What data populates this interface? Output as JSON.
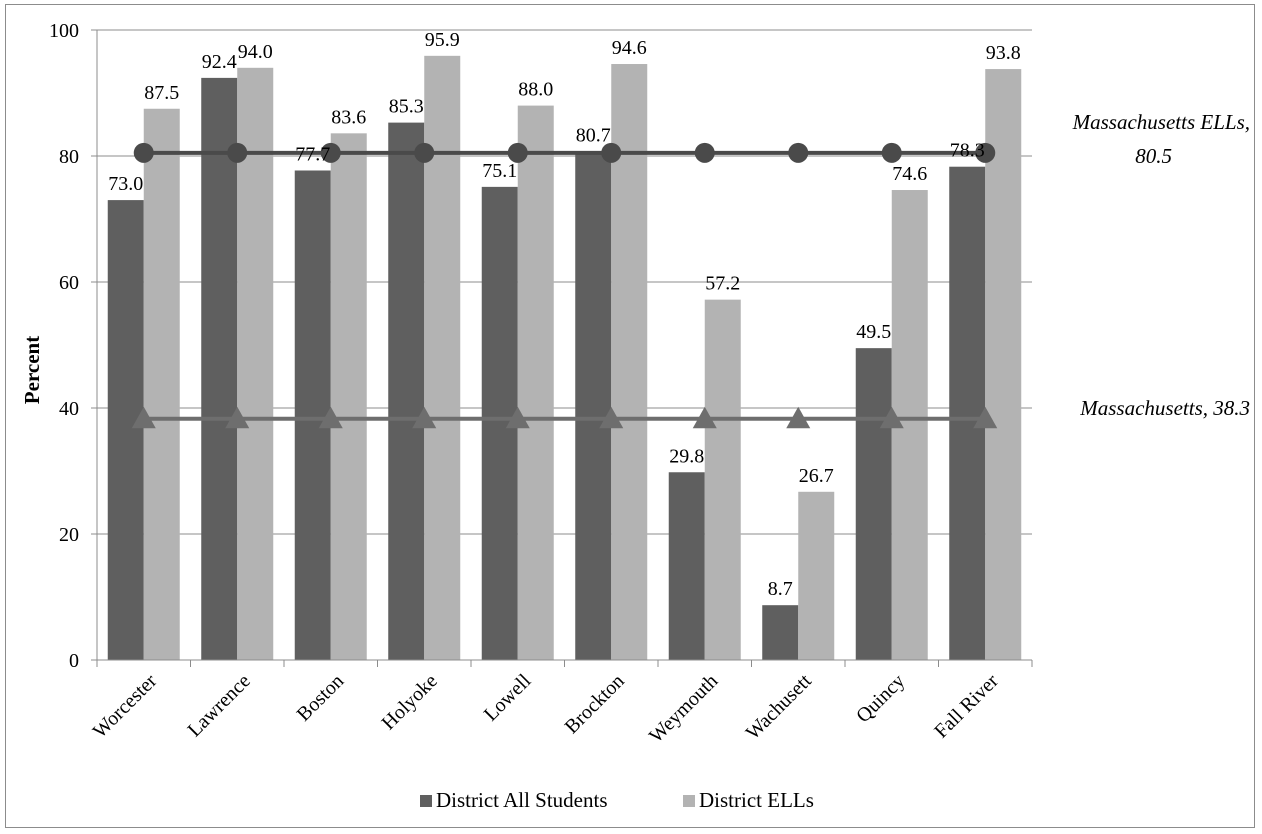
{
  "chart_data": {
    "type": "bar",
    "categories": [
      "Worcester",
      "Lawrence",
      "Boston",
      "Holyoke",
      "Lowell",
      "Brockton",
      "Weymouth",
      "Wachusett",
      "Quincy",
      "Fall River"
    ],
    "series": [
      {
        "name": "District All Students",
        "color": "#5f5f5f",
        "values": [
          73.0,
          92.4,
          77.7,
          85.3,
          75.1,
          80.7,
          29.8,
          8.7,
          49.5,
          78.3
        ],
        "labels": [
          "73.0",
          "92.4",
          "77.7",
          "85.3",
          "75.1",
          "80.7",
          "29.8",
          "8.7",
          "49.5",
          "78.3"
        ]
      },
      {
        "name": "District ELLs",
        "color": "#b3b3b3",
        "values": [
          87.5,
          94.0,
          83.6,
          95.9,
          88.0,
          94.6,
          57.2,
          26.7,
          74.6,
          93.8
        ],
        "labels": [
          "87.5",
          "94.0",
          "83.6",
          "95.9",
          "88.0",
          "94.6",
          "57.2",
          "26.7",
          "74.6",
          "93.8"
        ]
      }
    ],
    "reference_lines": [
      {
        "label": "Massachusetts ELLs,",
        "label2": "80.5",
        "value": 80.5,
        "marker": "circle",
        "color": "#4a4a4a"
      },
      {
        "label": "Massachusetts, 38.3",
        "value": 38.3,
        "marker": "triangle",
        "color": "#6e6e6e"
      }
    ],
    "ylabel": "Percent",
    "xlabel": "",
    "ylim": [
      0,
      100
    ],
    "yticks": [
      "0",
      "20",
      "40",
      "60",
      "80",
      "100"
    ],
    "grid": true,
    "legend": "bottom"
  }
}
